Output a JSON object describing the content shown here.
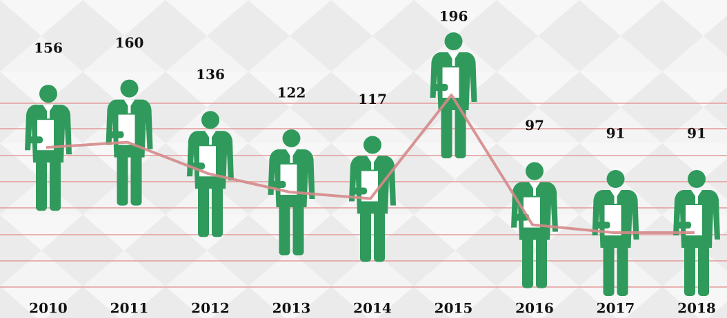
{
  "chart_data": {
    "type": "pictogram-line",
    "categories": [
      "2010",
      "2011",
      "2012",
      "2013",
      "2014",
      "2015",
      "2016",
      "2017",
      "2018"
    ],
    "values": [
      156,
      160,
      136,
      122,
      117,
      196,
      97,
      91,
      91
    ],
    "color": "#2f9a5c",
    "line_color": "#d58a8a"
  }
}
